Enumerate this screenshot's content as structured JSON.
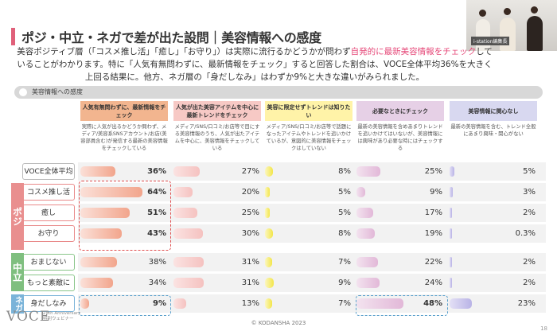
{
  "title": "ポジ・中立・ネガで差が出た設問｜美容情報への感度",
  "video": {
    "label": "i-station編集長"
  },
  "description": {
    "before": "美容ポジティブ層（「コスメ推し活」「癒し」「お守り」）は実際に流行るかどうかが問わず",
    "highlight": "自発的に最新美容情報をチェック",
    "after": "していることがわかります。特に「人気有無問わずに、最新情報をチェック」すると回答した割合は、VOCE全体平均36%を大きく上回る結果に。他方、ネガ層の「身だしなみ」はわずか9%と大きな違いがみられました。"
  },
  "legend_label": "美容情報への感度",
  "columns": [
    {
      "head": "人気有無問わずに、最新情報をチェック",
      "desc": "実際に人気が出るかどうか問わず、メディア/美容系SNSアカウント/お店(美容部員含む)が発信する最新の美容情報をチェックしている",
      "color": "#f2b58f",
      "bar": "#f2a58c",
      "bar_light": "#fbe0d8"
    },
    {
      "head": "人気が出た美容アイテムを中心に最新トレンドをチェック",
      "desc": "メディア/SNS/口コミ/お店等で目にする美容情報のうち、人気が出たアイテムを中心に、美容情報をチェックしている",
      "color": "#f7c9c5",
      "bar": "#f5c2c0",
      "bar_light": "#fbe3e2"
    },
    {
      "head": "美容に限定せずトレンドは知りたい",
      "desc": "メディア/SNS/口コミ/お店等で話題になったアイテムやトレンドを追いかけているが、意図的に美容情報をチェックはしていない",
      "color": "#fff3a8",
      "bar": "#f3e64a",
      "bar_light": "#fbf6c0"
    },
    {
      "head": "必要なときにチェック",
      "desc": "最新の美容情報を含めあまりトレンドを追いかけてはいないが、美容情報には興味があり必要な時にはチェックする",
      "color": "#e6d0e6",
      "bar": "#e2b8d8",
      "bar_light": "#f3e3ef"
    },
    {
      "head": "美容情報に関心なし",
      "desc": "最新の美容情報を含む、トレンド全般にあまり興味・関心がない",
      "color": "#d8d8f0",
      "bar": "#b9b3e6",
      "bar_light": "#e3e0f5"
    }
  ],
  "groups": [
    {
      "label": "ポジ",
      "color": "#e98f8f"
    },
    {
      "label": "中立",
      "color": "#7fbf7f"
    },
    {
      "label": "ネガ",
      "color": "#7ab3d9"
    }
  ],
  "rows": [
    {
      "label": "VOCE全体平均",
      "values": [
        36,
        27,
        8,
        25,
        5
      ],
      "texts": [
        "36%",
        "27%",
        "8%",
        "25%",
        "5%"
      ]
    },
    {
      "label": "コスメ推し活",
      "values": [
        64,
        20,
        5,
        9,
        3
      ],
      "texts": [
        "64%",
        "20%",
        "5%",
        "9%",
        "3%"
      ]
    },
    {
      "label": "癒し",
      "values": [
        51,
        25,
        5,
        17,
        2
      ],
      "texts": [
        "51%",
        "25%",
        "5%",
        "17%",
        "2%"
      ]
    },
    {
      "label": "お守り",
      "values": [
        43,
        30,
        8,
        19,
        0.3
      ],
      "texts": [
        "43%",
        "30%",
        "8%",
        "19%",
        "0.3%"
      ]
    },
    {
      "label": "おまじない",
      "values": [
        38,
        31,
        7,
        22,
        2
      ],
      "texts": [
        "38%",
        "31%",
        "7%",
        "22%",
        "2%"
      ]
    },
    {
      "label": "もっと素敵に",
      "values": [
        34,
        31,
        9,
        24,
        2
      ],
      "texts": [
        "34%",
        "31%",
        "9%",
        "24%",
        "2%"
      ]
    },
    {
      "label": "身だしなみ",
      "values": [
        9,
        13,
        7,
        48,
        23
      ],
      "texts": [
        "9%",
        "13%",
        "7%",
        "48%",
        "23%"
      ]
    }
  ],
  "footer": "© KODANSHA 2023",
  "logo": {
    "text": "VOCE",
    "sub1": "25th Anniversary",
    "sub2": "特別ウェビナー"
  },
  "page_number": "18"
}
